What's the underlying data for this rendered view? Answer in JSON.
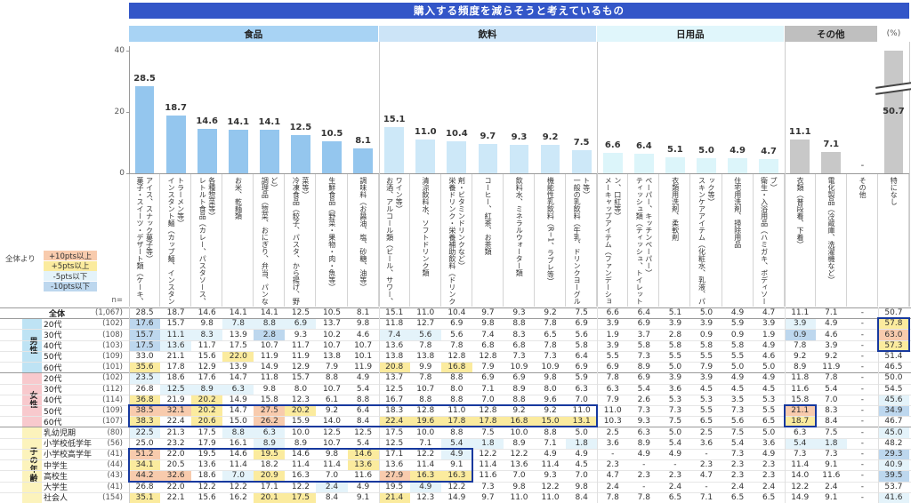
{
  "title": "購入する頻度を減らそうと考えているもの",
  "unit_label": "(%)",
  "n_header": "n=",
  "legend": {
    "prefix": "全体より",
    "items": [
      {
        "label": "+10pts以上",
        "color": "#f8cbad"
      },
      {
        "label": "+5pts以上",
        "color": "#fbeb9e"
      },
      {
        "label": "-5pts以下",
        "color": "#e4f3fa"
      },
      {
        "label": "-10pts以下",
        "color": "#bdd7ee"
      }
    ]
  },
  "highlight_colors": {
    "p10": "#f8cbad",
    "p5": "#fbeb9e",
    "m5": "#e4f3fa",
    "m10": "#bdd7ee"
  },
  "colors": {
    "titlebar": "#3356c8",
    "annotation_box": "#17399e",
    "male_bg": "#bee3f4",
    "female_bg": "#f8c9cd",
    "child_bg": "#fcf3bc"
  },
  "chart_data": {
    "type": "bar",
    "title": "購入する頻度を減らそうと考えているもの",
    "ylabel": "(%)",
    "ylim": [
      0,
      40
    ],
    "yticks": [
      0,
      20,
      40
    ],
    "grid": false,
    "axis_break": {
      "column": "特になし",
      "value": 50.7
    },
    "groups": [
      {
        "name": "食品",
        "header_color": "#a8d3f4",
        "bar_color": "#94c6ee",
        "header_span": 8,
        "items": [
          {
            "label": "菓子・スイーツ・デザート類（ケーキ、アイス、スナック菓子等）",
            "value": 28.5
          },
          {
            "label": "インスタント麺（カップ麺、インスタントラーメン等）",
            "value": 18.7
          },
          {
            "label": "レトルト食品（カレー、パスタソース、各種惣菜等）",
            "value": 14.6
          },
          {
            "label": "お米、乾麺類",
            "value": 14.1
          },
          {
            "label": "調理品（惣菜、おにぎり、弁当、パンなど）",
            "value": 14.1
          },
          {
            "label": "冷凍食品（餃子、パスタ、から揚げ、野菜等）",
            "value": 12.5
          },
          {
            "label": "生鮮食品（野菜・果物・肉・魚等）",
            "value": 10.5
          },
          {
            "label": "調味料（お醤油、塩、砂糖、油等）",
            "value": 8.1
          }
        ]
      },
      {
        "name": "飲料",
        "header_color": "#cce4f7",
        "bar_color": "#cde8f8",
        "header_span": 7,
        "items": [
          {
            "label": "お酒、アルコール類（ビール、サワー、ワイン等）",
            "value": 15.1
          },
          {
            "label": "清涼飲料水、ソフトドリンク類",
            "value": 11.0
          },
          {
            "label": "栄養ドリンク・栄養補助飲料（ドリンク剤・ビタミンドリンクなど）",
            "value": 10.4
          },
          {
            "label": "コーヒー、紅茶、お茶類",
            "value": 9.7
          },
          {
            "label": "飲料水、ミネラルウォーター類",
            "value": 9.3
          },
          {
            "label": "機能性乳飲料（R−1、ラブレ等）",
            "value": 9.2
          },
          {
            "label": "一般の乳飲料（牛乳、ドリンクヨーグルト等）",
            "value": 7.5
          }
        ]
      },
      {
        "name": "日用品",
        "header_color": "#e0f6fb",
        "bar_color": "#dcf5fa",
        "header_span": 6,
        "items": [
          {
            "label": "メーキャップアイテム（ファンデーション、口紅等）",
            "value": 6.6
          },
          {
            "label": "ティッシュ類（ティッシュ、トイレットペーパー、キッチンペーパー）",
            "value": 6.4
          },
          {
            "label": "衣類用洗剤、柔軟剤",
            "value": 5.1
          },
          {
            "label": "スキンケアアイテム（化粧水、乳液、パック等）",
            "value": 5.0
          },
          {
            "label": "住宅用洗剤、掃除用品",
            "value": 4.9
          },
          {
            "label": "衛生・入浴用品（ハミガキ、ボディソープ）",
            "value": 4.7
          }
        ]
      },
      {
        "name": "その他",
        "header_color": "#bfbfbf",
        "bar_color": "#c8c8c8",
        "header_span": 3,
        "items": [
          {
            "label": "衣類（普段着、下着）",
            "value": 11.1
          },
          {
            "label": "電化製品（冷蔵庫、洗濯機など）",
            "value": 7.1
          },
          {
            "label": "その他",
            "value": null
          },
          {
            "label": "特になし",
            "value": 50.7
          }
        ]
      }
    ]
  },
  "table": {
    "overall": {
      "label": "全体",
      "n": "(1,067)",
      "values": [
        "28.5",
        "18.7",
        "14.6",
        "14.1",
        "14.1",
        "12.5",
        "10.5",
        "8.1",
        "15.1",
        "11.0",
        "10.4",
        "9.7",
        "9.3",
        "9.2",
        "7.5",
        "6.6",
        "6.4",
        "5.1",
        "5.0",
        "4.9",
        "4.7",
        "11.1",
        "7.1",
        "-",
        "50.7"
      ]
    },
    "row_groups": [
      {
        "name": "男性",
        "bg": "#bee3f4",
        "rows": [
          {
            "label": "20代",
            "n": "(102)",
            "values": [
              "17.6",
              "15.7",
              "9.8",
              "7.8",
              "8.8",
              "6.9",
              "13.7",
              "9.8",
              "11.8",
              "12.7",
              "6.9",
              "9.8",
              "8.8",
              "7.8",
              "6.9",
              "3.9",
              "6.9",
              "3.9",
              "3.9",
              "5.9",
              "3.9",
              "3.9",
              "4.9",
              "-",
              "57.8"
            ]
          },
          {
            "label": "30代",
            "n": "(108)",
            "values": [
              "15.7",
              "11.1",
              "8.3",
              "13.9",
              "2.8",
              "9.3",
              "10.2",
              "4.6",
              "7.4",
              "5.6",
              "5.6",
              "7.4",
              "8.3",
              "6.5",
              "5.6",
              "1.9",
              "3.7",
              "2.8",
              "0.9",
              "0.9",
              "1.9",
              "0.9",
              "4.6",
              "-",
              "63.0"
            ]
          },
          {
            "label": "40代",
            "n": "(103)",
            "values": [
              "17.5",
              "13.6",
              "11.7",
              "17.5",
              "10.7",
              "11.7",
              "10.7",
              "10.7",
              "13.6",
              "7.8",
              "7.8",
              "6.8",
              "6.8",
              "7.8",
              "5.8",
              "3.9",
              "5.8",
              "5.8",
              "5.8",
              "5.8",
              "4.9",
              "7.8",
              "3.9",
              "-",
              "57.3"
            ]
          },
          {
            "label": "50代",
            "n": "(109)",
            "values": [
              "33.0",
              "21.1",
              "15.6",
              "22.0",
              "11.9",
              "11.9",
              "13.8",
              "10.1",
              "13.8",
              "13.8",
              "12.8",
              "12.8",
              "7.3",
              "7.3",
              "6.4",
              "5.5",
              "7.3",
              "5.5",
              "5.5",
              "5.5",
              "4.6",
              "9.2",
              "9.2",
              "-",
              "51.4"
            ]
          },
          {
            "label": "60代",
            "n": "(101)",
            "values": [
              "35.6",
              "17.8",
              "12.9",
              "13.9",
              "14.9",
              "12.9",
              "7.9",
              "11.9",
              "20.8",
              "9.9",
              "16.8",
              "7.9",
              "10.9",
              "10.9",
              "6.9",
              "6.9",
              "8.9",
              "5.0",
              "7.9",
              "5.0",
              "5.0",
              "8.9",
              "11.9",
              "-",
              "46.5"
            ]
          }
        ]
      },
      {
        "name": "女性",
        "bg": "#f8c9cd",
        "rows": [
          {
            "label": "20代",
            "n": "(102)",
            "values": [
              "23.5",
              "18.6",
              "17.6",
              "14.7",
              "11.8",
              "15.7",
              "8.8",
              "4.9",
              "13.7",
              "7.8",
              "8.8",
              "6.9",
              "6.9",
              "9.8",
              "5.9",
              "7.8",
              "6.9",
              "3.9",
              "3.9",
              "4.9",
              "4.9",
              "11.8",
              "7.8",
              "-",
              "50.0"
            ]
          },
          {
            "label": "30代",
            "n": "(112)",
            "values": [
              "26.8",
              "12.5",
              "8.9",
              "6.3",
              "9.8",
              "8.0",
              "10.7",
              "5.4",
              "12.5",
              "10.7",
              "8.0",
              "7.1",
              "8.9",
              "8.0",
              "6.3",
              "6.3",
              "5.4",
              "3.6",
              "4.5",
              "4.5",
              "4.5",
              "11.6",
              "5.4",
              "-",
              "54.5"
            ]
          },
          {
            "label": "40代",
            "n": "(114)",
            "values": [
              "36.8",
              "21.9",
              "20.2",
              "14.9",
              "15.8",
              "12.3",
              "6.1",
              "8.8",
              "16.7",
              "8.8",
              "8.8",
              "7.0",
              "8.8",
              "9.6",
              "7.0",
              "7.9",
              "2.6",
              "5.3",
              "5.3",
              "3.5",
              "5.3",
              "15.8",
              "7.0",
              "-",
              "45.6"
            ]
          },
          {
            "label": "50代",
            "n": "(109)",
            "values": [
              "38.5",
              "32.1",
              "20.2",
              "14.7",
              "27.5",
              "20.2",
              "9.2",
              "6.4",
              "18.3",
              "12.8",
              "11.0",
              "12.8",
              "9.2",
              "9.2",
              "11.0",
              "11.0",
              "7.3",
              "7.3",
              "5.5",
              "7.3",
              "5.5",
              "21.1",
              "8.3",
              "-",
              "34.9"
            ]
          },
          {
            "label": "60代",
            "n": "(107)",
            "values": [
              "38.3",
              "22.4",
              "20.6",
              "15.0",
              "26.2",
              "15.9",
              "14.0",
              "8.4",
              "22.4",
              "19.6",
              "17.8",
              "17.8",
              "16.8",
              "15.0",
              "13.1",
              "10.3",
              "9.3",
              "7.5",
              "6.5",
              "5.6",
              "6.5",
              "18.7",
              "8.4",
              "-",
              "46.7"
            ]
          }
        ]
      },
      {
        "name": "子の年齢",
        "bg": "#fcf3bc",
        "rows": [
          {
            "label": "乳幼児期",
            "n": "(80)",
            "values": [
              "22.5",
              "21.3",
              "17.5",
              "8.8",
              "6.3",
              "10.0",
              "12.5",
              "12.5",
              "17.5",
              "10.0",
              "8.8",
              "7.5",
              "10.0",
              "8.8",
              "5.0",
              "2.5",
              "6.3",
              "5.0",
              "2.5",
              "7.5",
              "5.0",
              "6.3",
              "7.5",
              "-",
              "45.0"
            ]
          },
          {
            "label": "小学校低学年",
            "n": "(56)",
            "values": [
              "25.0",
              "23.2",
              "17.9",
              "16.1",
              "8.9",
              "8.9",
              "10.7",
              "5.4",
              "12.5",
              "7.1",
              "5.4",
              "1.8",
              "8.9",
              "7.1",
              "1.8",
              "3.6",
              "8.9",
              "5.4",
              "3.6",
              "5.4",
              "3.6",
              "5.4",
              "1.8",
              "-",
              "48.2"
            ]
          },
          {
            "label": "小学校高学年",
            "n": "(41)",
            "values": [
              "51.2",
              "22.0",
              "19.5",
              "14.6",
              "19.5",
              "14.6",
              "9.8",
              "14.6",
              "17.1",
              "12.2",
              "4.9",
              "12.2",
              "12.2",
              "4.9",
              "4.9",
              "-",
              "4.9",
              "4.9",
              "-",
              "7.3",
              "4.9",
              "7.3",
              "7.3",
              "-",
              "29.3"
            ]
          },
          {
            "label": "中学生",
            "n": "(44)",
            "values": [
              "34.1",
              "20.5",
              "13.6",
              "11.4",
              "18.2",
              "11.4",
              "11.4",
              "13.6",
              "13.6",
              "11.4",
              "9.1",
              "11.4",
              "13.6",
              "11.4",
              "4.5",
              "2.3",
              "-",
              "-",
              "2.3",
              "2.3",
              "2.3",
              "11.4",
              "9.1",
              "-",
              "40.9"
            ]
          },
          {
            "label": "高校生",
            "n": "(43)",
            "values": [
              "44.2",
              "32.6",
              "18.6",
              "7.0",
              "20.9",
              "16.3",
              "7.0",
              "11.6",
              "27.9",
              "16.3",
              "16.3",
              "11.6",
              "7.0",
              "9.3",
              "7.0",
              "4.7",
              "2.3",
              "2.3",
              "4.7",
              "2.3",
              "2.3",
              "14.0",
              "11.6",
              "-",
              "39.5"
            ]
          },
          {
            "label": "大学生",
            "n": "(41)",
            "values": [
              "26.8",
              "22.0",
              "12.2",
              "12.2",
              "17.1",
              "12.2",
              "2.4",
              "4.9",
              "19.5",
              "4.9",
              "12.2",
              "7.3",
              "9.8",
              "12.2",
              "9.8",
              "2.4",
              "-",
              "2.4",
              "-",
              "2.4",
              "2.4",
              "12.2",
              "2.4",
              "-",
              "53.7"
            ]
          },
          {
            "label": "社会人",
            "n": "(154)",
            "values": [
              "35.1",
              "22.1",
              "15.6",
              "16.2",
              "20.1",
              "17.5",
              "8.4",
              "9.1",
              "21.4",
              "12.3",
              "14.9",
              "9.7",
              "11.0",
              "11.0",
              "8.4",
              "7.8",
              "7.8",
              "6.5",
              "7.1",
              "6.5",
              "6.5",
              "14.9",
              "9.1",
              "-",
              "41.6"
            ]
          }
        ]
      }
    ]
  },
  "annotation_boxes": [
    {
      "rows": [
        1,
        3
      ],
      "cols": [
        24,
        24
      ]
    },
    {
      "rows": [
        9,
        10
      ],
      "cols": [
        0,
        14
      ]
    },
    {
      "rows": [
        9,
        10
      ],
      "cols": [
        21,
        21
      ]
    },
    {
      "rows": [
        13,
        15
      ],
      "cols": [
        0,
        10
      ]
    }
  ]
}
